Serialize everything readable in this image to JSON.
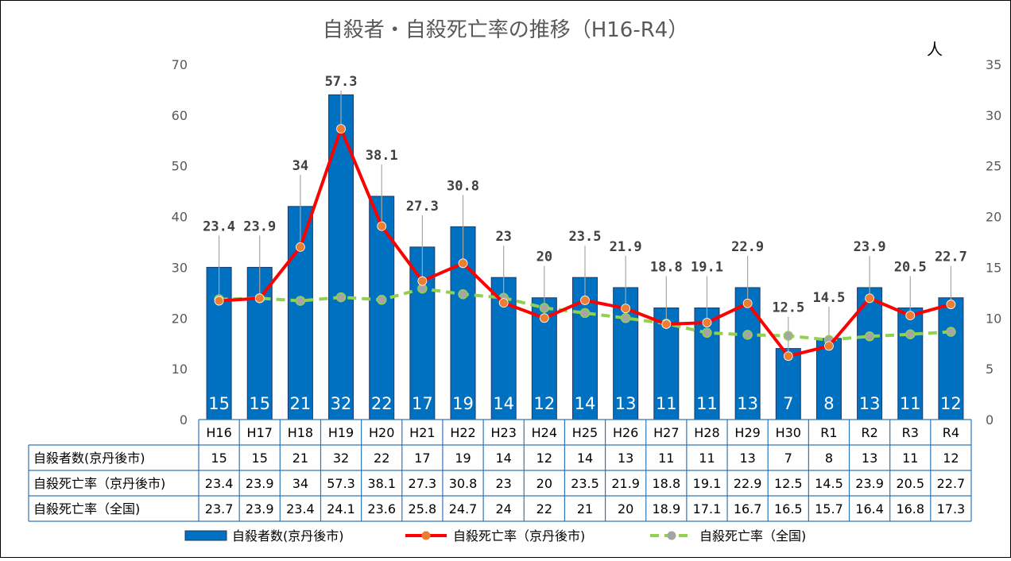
{
  "chart_data": {
    "type": "bar",
    "title": "自殺者・自殺死亡率の推移（H16-R4）",
    "unit_right": "人",
    "categories": [
      "H16",
      "H17",
      "H18",
      "H19",
      "H20",
      "H21",
      "H22",
      "H23",
      "H24",
      "H25",
      "H26",
      "H27",
      "H28",
      "H29",
      "H30",
      "R1",
      "R2",
      "R3",
      "R4"
    ],
    "left_axis": {
      "min": 0,
      "max": 70,
      "step": 10,
      "ticks": [
        "0",
        "10",
        "20",
        "30",
        "40",
        "50",
        "60",
        "70"
      ]
    },
    "right_axis": {
      "min": 0,
      "max": 35,
      "step": 5,
      "ticks": [
        "0",
        "5",
        "10",
        "15",
        "20",
        "25",
        "30",
        "35"
      ]
    },
    "series": [
      {
        "name": "自殺者数(京丹後市)",
        "kind": "bar",
        "axis": "right",
        "color": "#0070C0",
        "values": [
          15,
          15,
          21,
          32,
          22,
          17,
          19,
          14,
          12,
          14,
          13,
          11,
          11,
          13,
          7,
          8,
          13,
          11,
          12
        ],
        "labels": [
          "15",
          "15",
          "21",
          "32",
          "22",
          "17",
          "19",
          "14",
          "12",
          "14",
          "13",
          "11",
          "11",
          "13",
          "7",
          "8",
          "13",
          "11",
          "12"
        ]
      },
      {
        "name": "自殺死亡率（京丹後市)",
        "kind": "line",
        "axis": "left",
        "color": "#FF0000",
        "marker": "#ED7D31",
        "values": [
          23.4,
          23.9,
          34,
          57.3,
          38.1,
          27.3,
          30.8,
          23,
          20,
          23.5,
          21.9,
          18.8,
          19.1,
          22.9,
          12.5,
          14.5,
          23.9,
          20.5,
          22.7
        ],
        "labels": [
          "23.4",
          "23.9",
          "34",
          "57.3",
          "38.1",
          "27.3",
          "30.8",
          "23",
          "20",
          "23.5",
          "21.9",
          "18.8",
          "19.1",
          "22.9",
          "12.5",
          "14.5",
          "23.9",
          "20.5",
          "22.7"
        ]
      },
      {
        "name": "自殺死亡率（全国)",
        "kind": "line-dashed",
        "axis": "left",
        "color": "#92D050",
        "marker": "#A5A5A5",
        "values": [
          23.7,
          23.9,
          23.4,
          24.1,
          23.6,
          25.8,
          24.7,
          24,
          22,
          21,
          20,
          18.9,
          17.1,
          16.7,
          16.5,
          15.7,
          16.4,
          16.8,
          17.3
        ],
        "labels": [
          "23.7",
          "23.9",
          "23.4",
          "24.1",
          "23.6",
          "25.8",
          "24.7",
          "24",
          "22",
          "21",
          "20",
          "18.9",
          "17.1",
          "16.7",
          "16.5",
          "15.7",
          "16.4",
          "16.8",
          "17.3"
        ]
      }
    ],
    "table_rows": [
      {
        "label": "自殺者数(京丹後市)",
        "series": 0
      },
      {
        "label": "自殺死亡率（京丹後市)",
        "series": 1
      },
      {
        "label": "自殺死亡率（全国)",
        "series": 2
      }
    ],
    "legend": {
      "position": "bottom",
      "items": [
        "自殺者数(京丹後市)",
        "自殺死亡率（京丹後市)",
        "自殺死亡率（全国)"
      ]
    },
    "grid": {
      "horizontal": false
    }
  }
}
